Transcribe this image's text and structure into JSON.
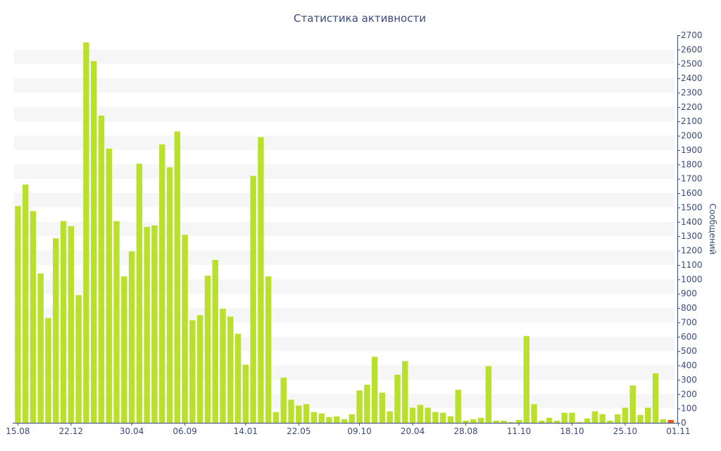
{
  "chart_data": {
    "type": "bar",
    "title": "Статистика активности",
    "xlabel": "",
    "ylabel": "Сообщений",
    "ylim": [
      0,
      2700
    ],
    "y_ticks": [
      0,
      100,
      200,
      300,
      400,
      500,
      600,
      700,
      800,
      900,
      1000,
      1100,
      1200,
      1300,
      1400,
      1500,
      1600,
      1700,
      1800,
      1900,
      2000,
      2100,
      2200,
      2300,
      2400,
      2500,
      2600,
      2700
    ],
    "x_tick_labels": [
      {
        "label": "15.08",
        "index": 0
      },
      {
        "label": "22.12",
        "index": 7
      },
      {
        "label": "30.04",
        "index": 15
      },
      {
        "label": "06.09",
        "index": 22
      },
      {
        "label": "14.01",
        "index": 30
      },
      {
        "label": "22.05",
        "index": 37
      },
      {
        "label": "09.10",
        "index": 45
      },
      {
        "label": "20.04",
        "index": 52
      },
      {
        "label": "28.08",
        "index": 59
      },
      {
        "label": "11.10",
        "index": 66
      },
      {
        "label": "18.10",
        "index": 73
      },
      {
        "label": "25.10",
        "index": 80
      },
      {
        "label": "01.11",
        "index": 87
      }
    ],
    "grid": "horizontal-bands",
    "colors": {
      "bar": "#b9e02c",
      "last_bar": "#e85c1c",
      "band": "#f6f6f6",
      "axis": "#3b4a7a",
      "text": "#3b4a7a"
    },
    "values": [
      1510,
      1660,
      1475,
      1040,
      730,
      1285,
      1405,
      1370,
      890,
      2650,
      2520,
      2140,
      1910,
      1405,
      1020,
      1195,
      1805,
      1365,
      1375,
      1940,
      1780,
      2030,
      1310,
      715,
      750,
      1025,
      1135,
      795,
      740,
      620,
      405,
      1720,
      1990,
      1020,
      75,
      315,
      160,
      120,
      130,
      75,
      65,
      40,
      45,
      25,
      60,
      225,
      265,
      460,
      210,
      80,
      335,
      430,
      105,
      125,
      105,
      75,
      70,
      45,
      230,
      15,
      25,
      35,
      395,
      15,
      15,
      5,
      20,
      605,
      130,
      15,
      35,
      15,
      70,
      70,
      5,
      30,
      80,
      60,
      15,
      60,
      105,
      260,
      55,
      105,
      345,
      25,
      20
    ]
  }
}
